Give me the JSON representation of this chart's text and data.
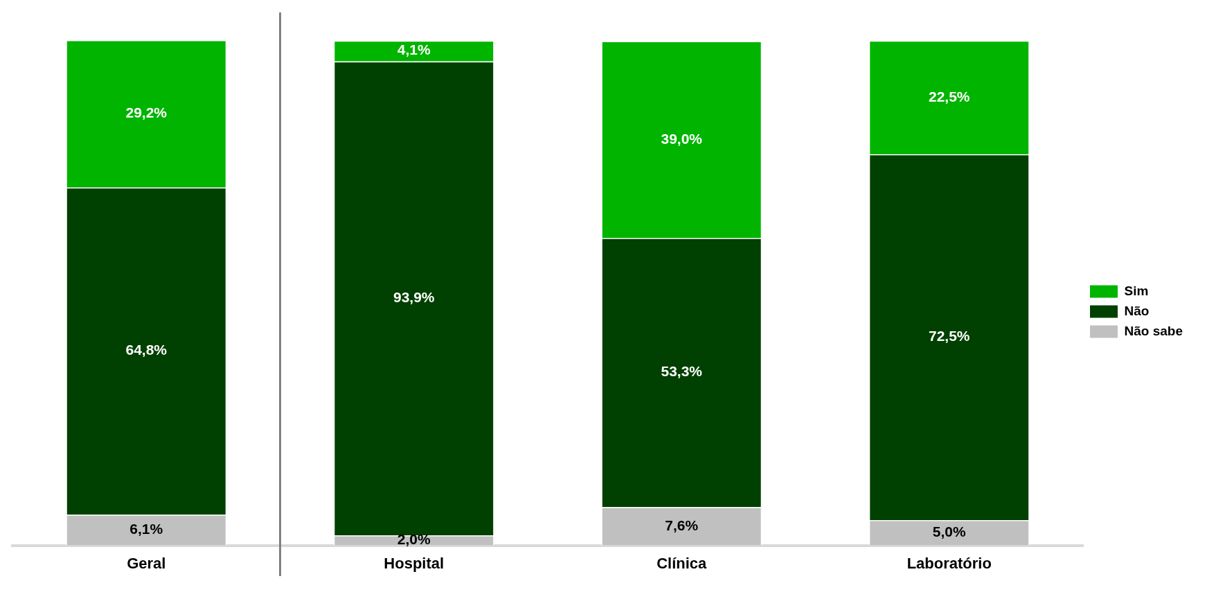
{
  "chart_data": {
    "type": "bar",
    "stacked": true,
    "categories": [
      "Geral",
      "Hospital",
      "Clínica",
      "Laboratório"
    ],
    "series": [
      {
        "name": "Não sabe",
        "color": "#c0c0c0",
        "values": [
          6.1,
          2.0,
          7.6,
          5.0
        ],
        "value_labels": [
          "6,1%",
          "2,0%",
          "7,6%",
          "5,0%"
        ]
      },
      {
        "name": "Não",
        "color": "#004000",
        "values": [
          64.8,
          93.9,
          53.3,
          72.5
        ],
        "value_labels": [
          "64,8%",
          "93,9%",
          "53,3%",
          "72,5%"
        ]
      },
      {
        "name": "Sim",
        "color": "#00b400",
        "values": [
          29.2,
          4.1,
          39.0,
          22.5
        ],
        "value_labels": [
          "29,2%",
          "4,1%",
          "39,0%",
          "22,5%"
        ]
      }
    ],
    "ylim": [
      0,
      100.1
    ],
    "tick_labels": "x",
    "grid": false,
    "legend": "right"
  }
}
